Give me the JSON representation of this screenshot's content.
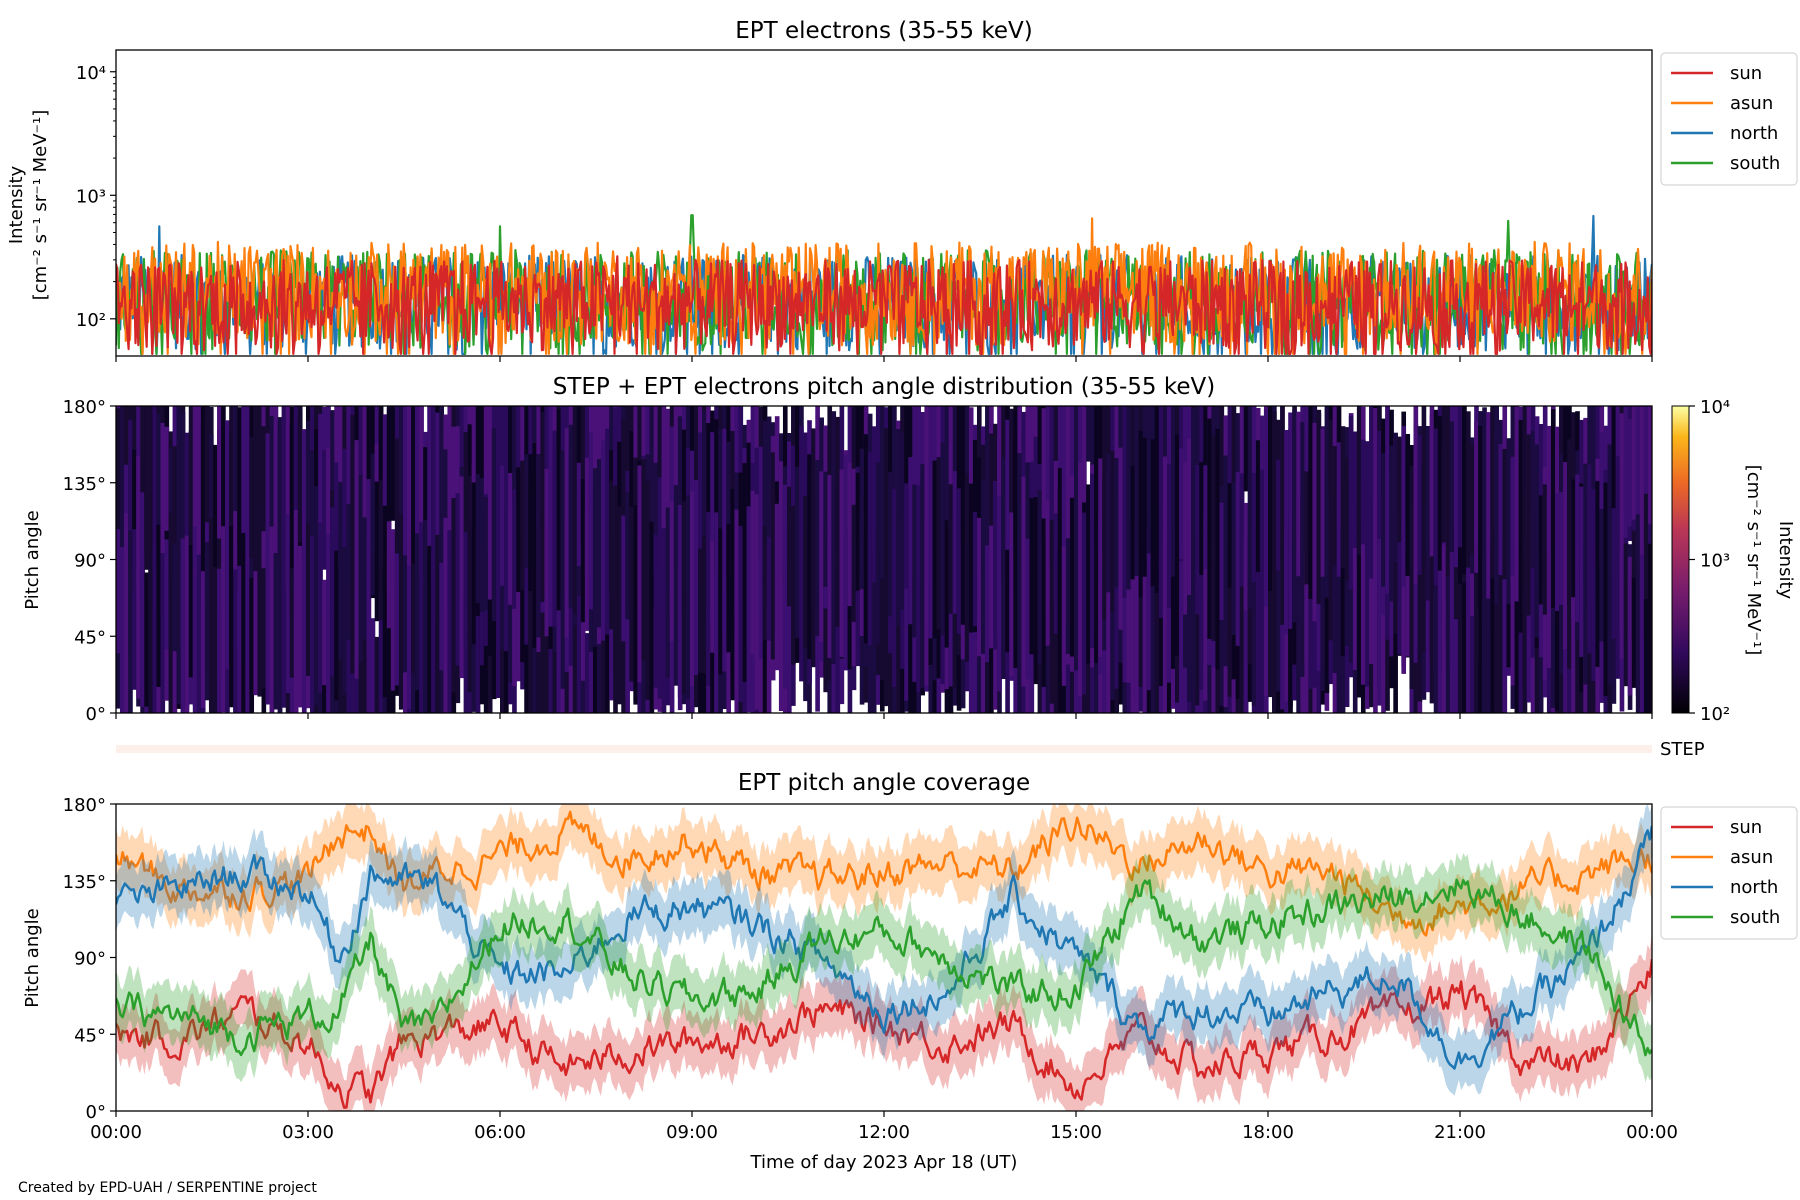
{
  "footer": {
    "credit": "Created by EPD-UAH / SERPENTINE project"
  },
  "colors": {
    "sun": "#d62728",
    "asun": "#ff7f0e",
    "north": "#1f77b4",
    "south": "#2ca02c",
    "colormap": "inferno",
    "step_bar": "#fdf0ea"
  },
  "chart_data": [
    {
      "type": "line",
      "title": "EPT electrons (35-55 keV)",
      "ylabel": "Intensity",
      "yunit": "[cm⁻² s⁻¹ sr⁻¹ MeV⁻¹]",
      "yscale": "log",
      "ylim": [
        50,
        15000
      ],
      "yticks": [
        {
          "v": 100,
          "label": "10²"
        },
        {
          "v": 1000,
          "label": "10³"
        },
        {
          "v": 10000,
          "label": "10⁴"
        }
      ],
      "xlim": [
        "2023-04-18 00:00",
        "2023-04-19 00:00"
      ],
      "legend": "outside-right",
      "series_note": "noisy fluctuating intensities, typical 60-350, peaks to ~700",
      "series": [
        {
          "name": "sun",
          "typical_range": [
            55,
            300
          ],
          "peaks": [
            {
              "x": "07:50",
              "y": 320
            }
          ]
        },
        {
          "name": "asun",
          "typical_range": [
            60,
            420
          ],
          "peaks": [
            {
              "x": "15:15",
              "y": 650
            },
            {
              "x": "22:10",
              "y": 420
            }
          ]
        },
        {
          "name": "north",
          "typical_range": [
            55,
            330
          ],
          "peaks": [
            {
              "x": "00:40",
              "y": 560
            },
            {
              "x": "23:05",
              "y": 680
            }
          ]
        },
        {
          "name": "south",
          "typical_range": [
            55,
            360
          ],
          "peaks": [
            {
              "x": "06:00",
              "y": 560
            },
            {
              "x": "09:00",
              "y": 690
            },
            {
              "x": "21:45",
              "y": 620
            }
          ]
        }
      ]
    },
    {
      "type": "heatmap",
      "title": "STEP + EPT electrons pitch angle distribution (35-55 keV)",
      "ylabel": "Pitch angle",
      "ylim": [
        0,
        180
      ],
      "yticks": [
        "0°",
        "45°",
        "90°",
        "135°",
        "180°"
      ],
      "xlim": [
        "2023-04-18 00:00",
        "2023-04-19 00:00"
      ],
      "colorbar": {
        "label": "Intensity",
        "unit": "[cm⁻² s⁻¹ sr⁻¹ MeV⁻¹]",
        "scale": "log",
        "range": [
          100,
          10000
        ],
        "ticks": [
          "10²",
          "10³",
          "10⁴"
        ]
      },
      "step_bar_label": "STEP",
      "pattern": "dark bands follow sensor pitch-angle coverage; values near 10² across the day"
    },
    {
      "type": "line",
      "title": "EPT pitch angle coverage",
      "ylabel": "Pitch angle",
      "xlabel": "Time of day 2023 Apr 18 (UT)",
      "ylim": [
        0,
        180
      ],
      "yticks": [
        "0°",
        "45°",
        "90°",
        "135°",
        "180°"
      ],
      "xticks": [
        "00:00",
        "03:00",
        "06:00",
        "09:00",
        "12:00",
        "15:00",
        "18:00",
        "21:00",
        "00:00"
      ],
      "legend": "outside-right",
      "shaded_band": "± spread around each sensor's central pitch angle",
      "series": [
        {
          "name": "sun",
          "x_hours": [
            0,
            1,
            2,
            3,
            3.5,
            4,
            4.5,
            5,
            6,
            7,
            8,
            9,
            10,
            11,
            12,
            13,
            14,
            15,
            16,
            17,
            18,
            19,
            20,
            21,
            22,
            23,
            24
          ],
          "y": [
            45,
            42,
            58,
            40,
            15,
            10,
            40,
            45,
            50,
            25,
            35,
            40,
            45,
            60,
            50,
            40,
            50,
            15,
            45,
            25,
            35,
            45,
            55,
            70,
            30,
            25,
            85
          ]
        },
        {
          "name": "asun",
          "x_hours": [
            0,
            1,
            2,
            3,
            3.5,
            4,
            4.5,
            5,
            6,
            7,
            8,
            9,
            10,
            11,
            12,
            13,
            14,
            15,
            16,
            17,
            18,
            19,
            20,
            21,
            22,
            23,
            24
          ],
          "y": [
            150,
            130,
            130,
            135,
            165,
            165,
            130,
            140,
            150,
            165,
            150,
            160,
            140,
            135,
            140,
            145,
            140,
            170,
            145,
            160,
            140,
            140,
            115,
            120,
            130,
            140,
            150
          ]
        },
        {
          "name": "north",
          "x_hours": [
            0,
            1,
            2,
            3,
            3.5,
            4,
            4.5,
            5,
            6,
            7,
            8,
            9,
            10,
            11,
            12,
            13,
            14,
            15,
            16,
            17,
            18,
            19,
            20,
            21,
            22,
            23,
            24
          ],
          "y": [
            120,
            130,
            140,
            130,
            90,
            140,
            135,
            130,
            80,
            80,
            115,
            120,
            110,
            90,
            60,
            70,
            125,
            90,
            50,
            60,
            55,
            70,
            80,
            30,
            60,
            90,
            160
          ]
        },
        {
          "name": "south",
          "x_hours": [
            0,
            1,
            2,
            3,
            3.5,
            4,
            4.5,
            5,
            6,
            7,
            8,
            9,
            10,
            11,
            12,
            13,
            14,
            15,
            16,
            17,
            18,
            19,
            20,
            21,
            22,
            23,
            24
          ],
          "y": [
            60,
            55,
            45,
            55,
            60,
            100,
            45,
            50,
            110,
            115,
            80,
            65,
            70,
            100,
            105,
            90,
            70,
            70,
            130,
            100,
            110,
            120,
            125,
            135,
            115,
            95,
            30
          ]
        }
      ]
    }
  ]
}
